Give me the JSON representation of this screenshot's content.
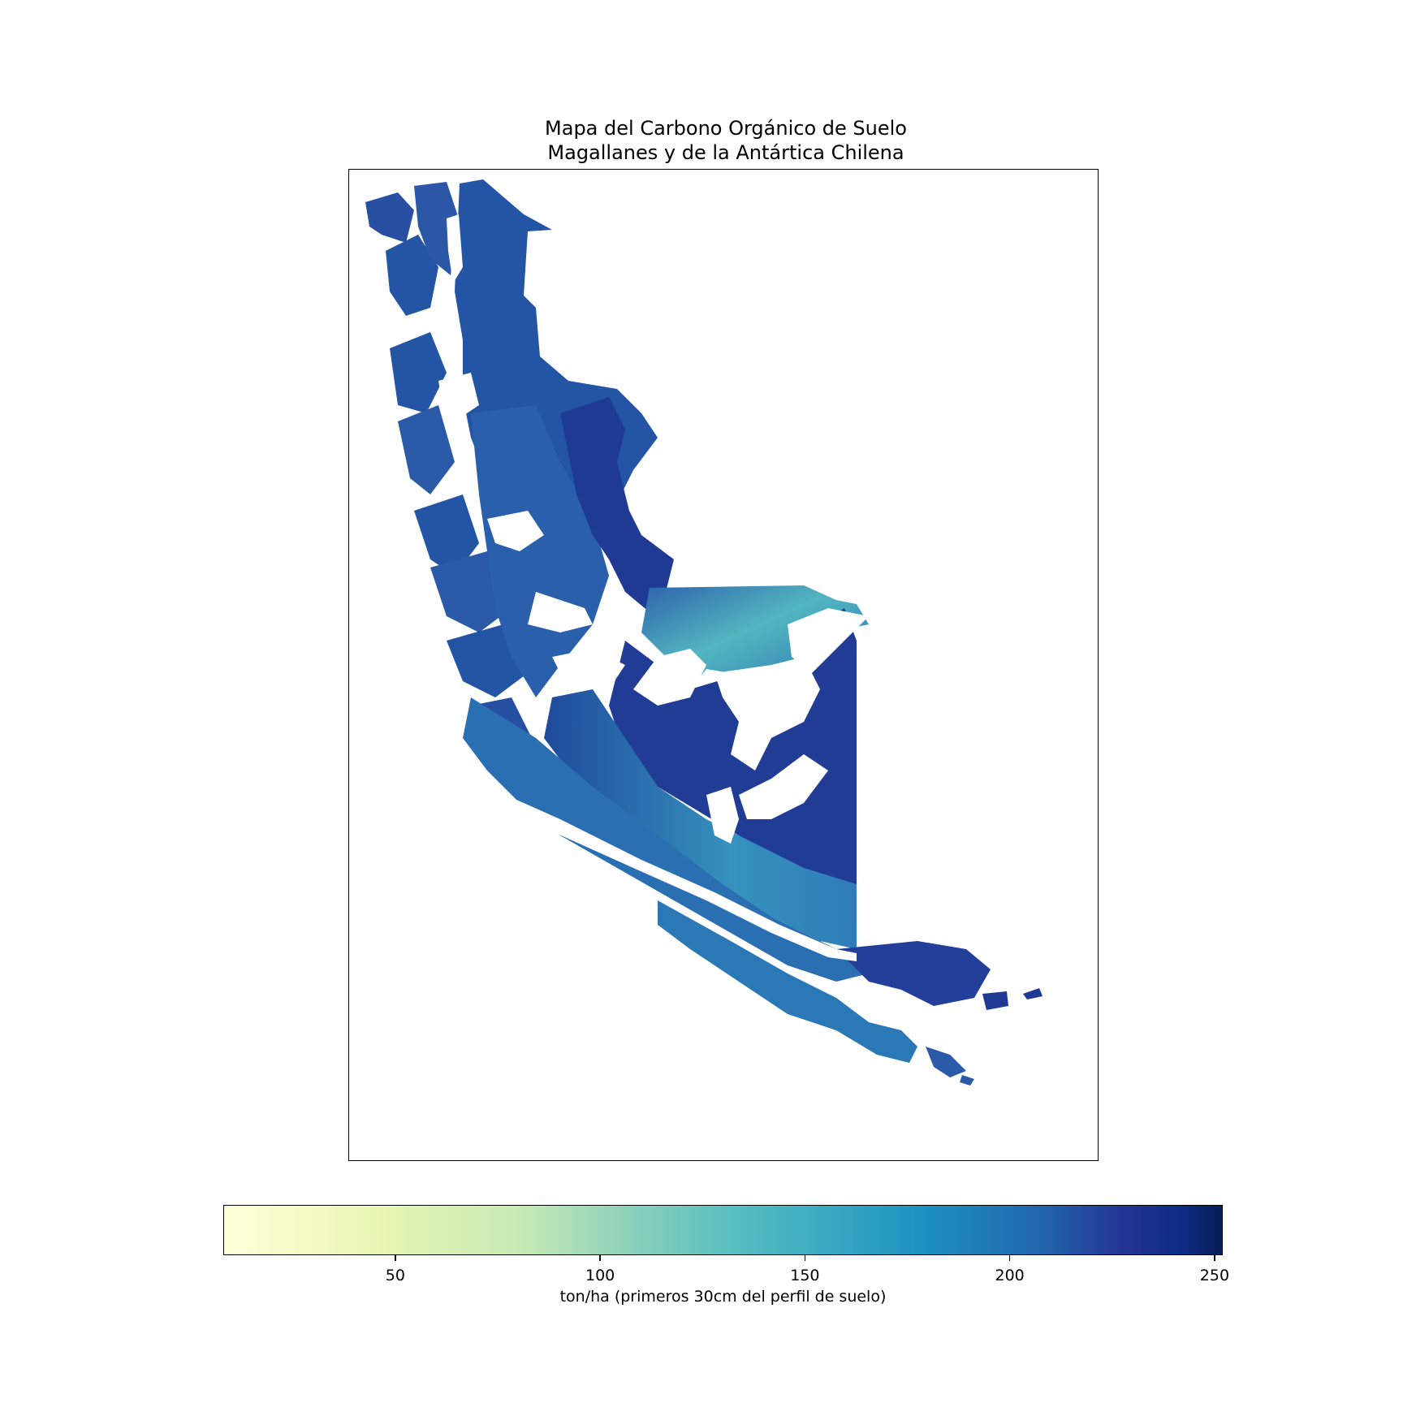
{
  "title": {
    "line1": "Mapa del Carbono Orgánico de Suelo",
    "line2": "Magallanes y de la Antártica Chilena"
  },
  "colorbar": {
    "label": "ton/ha (primeros 30cm del perfil de suelo)",
    "range": [
      8,
      252
    ],
    "ticks": [
      {
        "value": 50,
        "label": "50"
      },
      {
        "value": 100,
        "label": "100"
      },
      {
        "value": 150,
        "label": "150"
      },
      {
        "value": 200,
        "label": "200"
      },
      {
        "value": 250,
        "label": "250"
      }
    ],
    "colors": [
      "#ffffd9",
      "#c6e9b4",
      "#5cc0c0",
      "#1d91c0",
      "#253494",
      "#081d58"
    ]
  },
  "map": {
    "colors": {
      "dark": "#1f3a93",
      "mid": "#2a5aa8",
      "medium": "#2f7cb8",
      "light": "#3a9fbf",
      "pale": "#6cc3bd"
    }
  }
}
